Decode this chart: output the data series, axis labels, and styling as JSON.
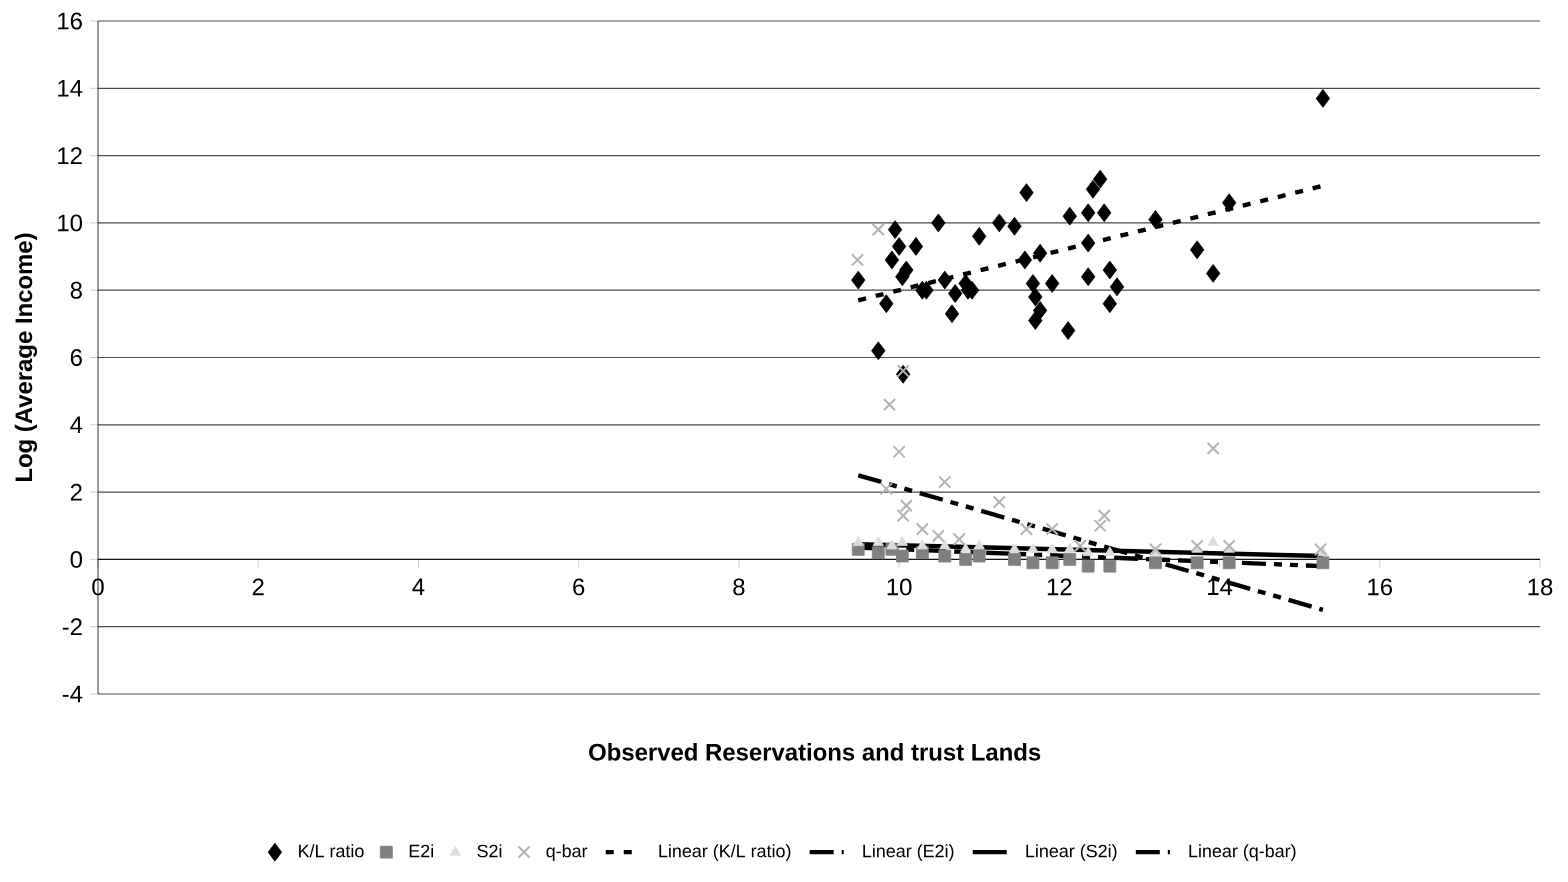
{
  "chart_data": {
    "type": "scatter",
    "xlabel": "Observed Reservations and trust Lands",
    "ylabel": "Log (Average Income)",
    "xlim": [
      0,
      18
    ],
    "xticks": [
      0,
      2,
      4,
      6,
      8,
      10,
      12,
      14,
      16,
      18
    ],
    "ylim": [
      -4,
      16
    ],
    "yticks": [
      -4,
      -2,
      0,
      2,
      4,
      6,
      8,
      10,
      12,
      14,
      16
    ],
    "grid": "y",
    "legend": "bottom",
    "series": [
      {
        "name": "K/L ratio",
        "marker": "diamond",
        "color": "#000000",
        "x": [
          9.49,
          9.84,
          9.74,
          9.91,
          9.95,
          10.0,
          10.04,
          10.09,
          10.21,
          10.29,
          10.34,
          10.49,
          10.57,
          10.66,
          10.7,
          10.83,
          10.86,
          10.91,
          11.0,
          11.25,
          11.44,
          11.59,
          11.57,
          11.67,
          11.7,
          11.7,
          11.76,
          11.76,
          11.91,
          12.11,
          12.13,
          12.36,
          12.36,
          12.36,
          12.42,
          12.51,
          12.56,
          12.63,
          12.63,
          12.72,
          13.2,
          13.72,
          13.92,
          14.12,
          15.29,
          10.05
        ],
        "values": [
          8.3,
          7.6,
          6.2,
          8.9,
          9.8,
          9.3,
          8.4,
          8.6,
          9.3,
          8.0,
          8.0,
          10.0,
          8.3,
          7.3,
          7.9,
          8.2,
          8.0,
          8.0,
          9.6,
          10.0,
          9.9,
          10.9,
          8.9,
          8.2,
          7.8,
          7.1,
          7.4,
          9.1,
          8.2,
          6.8,
          10.2,
          8.4,
          9.4,
          10.3,
          11.0,
          11.3,
          10.3,
          8.6,
          7.6,
          8.1,
          10.1,
          9.2,
          8.5,
          10.6,
          13.7,
          5.5
        ]
      },
      {
        "name": "E2i",
        "marker": "square",
        "color": "#808080",
        "x": [
          9.49,
          9.74,
          9.91,
          10.04,
          10.29,
          10.57,
          10.83,
          11.0,
          11.44,
          11.67,
          11.91,
          12.13,
          12.36,
          12.63,
          13.2,
          13.72,
          14.12,
          15.29
        ],
        "values": [
          0.3,
          0.2,
          0.3,
          0.1,
          0.2,
          0.1,
          0.0,
          0.1,
          0.0,
          -0.1,
          -0.1,
          0.0,
          -0.2,
          -0.2,
          -0.1,
          -0.1,
          -0.1,
          -0.1
        ]
      },
      {
        "name": "S2i",
        "marker": "triangle",
        "color": "#dddddd",
        "x": [
          9.49,
          9.74,
          9.91,
          10.04,
          10.29,
          10.57,
          10.83,
          11.0,
          11.44,
          11.67,
          11.91,
          12.13,
          12.36,
          12.63,
          13.2,
          13.72,
          13.92,
          14.12,
          15.29
        ],
        "values": [
          0.5,
          0.5,
          0.4,
          0.5,
          0.4,
          0.4,
          0.3,
          0.4,
          0.3,
          0.3,
          0.3,
          0.3,
          0.2,
          0.2,
          0.2,
          0.3,
          0.5,
          0.3,
          0.2
        ]
      },
      {
        "name": "q-bar",
        "marker": "cross",
        "color": "#b3b3b3",
        "x": [
          9.48,
          9.74,
          10.05,
          9.88,
          10.0,
          13.92,
          10.57,
          11.25,
          12.56,
          9.84,
          10.09,
          10.05,
          10.29,
          11.91,
          12.51,
          14.12,
          15.26,
          13.72,
          13.2,
          11.59,
          12.26,
          10.75,
          10.49
        ],
        "values": [
          8.9,
          9.8,
          5.6,
          4.6,
          3.2,
          3.3,
          2.3,
          1.7,
          1.3,
          2.1,
          1.6,
          1.3,
          0.9,
          0.9,
          1.0,
          0.4,
          0.3,
          0.4,
          0.3,
          0.9,
          0.4,
          0.6,
          0.7
        ]
      },
      {
        "name": "Linear (K/L ratio)",
        "type": "line",
        "line_style": "dotted",
        "color": "#000000",
        "x": [
          9.49,
          15.29
        ],
        "values": [
          7.7,
          11.1
        ]
      },
      {
        "name": "Linear (E2i)",
        "type": "line",
        "line_style": "dashed",
        "color": "#000000",
        "x": [
          9.49,
          15.29
        ],
        "values": [
          0.35,
          -0.2
        ]
      },
      {
        "name": "Linear (S2i)",
        "type": "line",
        "line_style": "solid",
        "color": "#000000",
        "x": [
          9.49,
          15.29
        ],
        "values": [
          0.45,
          0.1
        ]
      },
      {
        "name": "Linear (q-bar)",
        "type": "line",
        "line_style": "dashed",
        "color": "#000000",
        "x": [
          9.49,
          15.29
        ],
        "values": [
          2.5,
          -1.5
        ]
      }
    ]
  }
}
